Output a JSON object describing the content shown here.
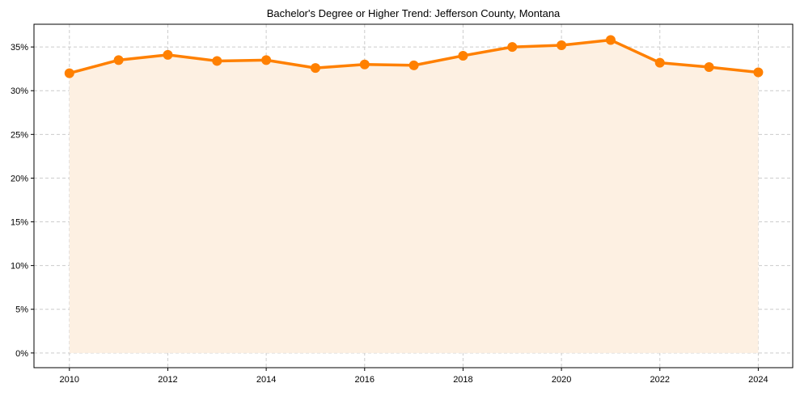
{
  "chart_data": {
    "type": "line",
    "title": "Bachelor's Degree or Higher Trend: Jefferson County, Montana",
    "xlabel": "",
    "ylabel": "",
    "x": [
      2010,
      2011,
      2012,
      2013,
      2014,
      2015,
      2016,
      2017,
      2018,
      2019,
      2020,
      2021,
      2022,
      2023,
      2024
    ],
    "series": [
      {
        "name": "Bachelor's Degree or Higher",
        "values": [
          32.0,
          33.5,
          34.1,
          33.4,
          33.5,
          32.6,
          33.0,
          32.9,
          34.0,
          35.0,
          35.2,
          35.8,
          33.2,
          32.7,
          32.1
        ]
      }
    ],
    "xlim": [
      2009.28,
      2024.7
    ],
    "ylim": [
      -1.68,
      37.6
    ],
    "xticks": [
      "2010",
      "2012",
      "2014",
      "2016",
      "2018",
      "2020",
      "2022",
      "2024"
    ],
    "xtick_values": [
      2010,
      2012,
      2014,
      2016,
      2018,
      2020,
      2022,
      2024
    ],
    "yticks": [
      "0%",
      "5%",
      "10%",
      "15%",
      "20%",
      "25%",
      "30%",
      "35%"
    ],
    "ytick_values": [
      0,
      5,
      10,
      15,
      20,
      25,
      30,
      35
    ],
    "grid": true,
    "fill_under": true,
    "colors": {
      "line": "#ff8000",
      "fill": "#fdf0e2",
      "grid": "#cccccc"
    }
  }
}
